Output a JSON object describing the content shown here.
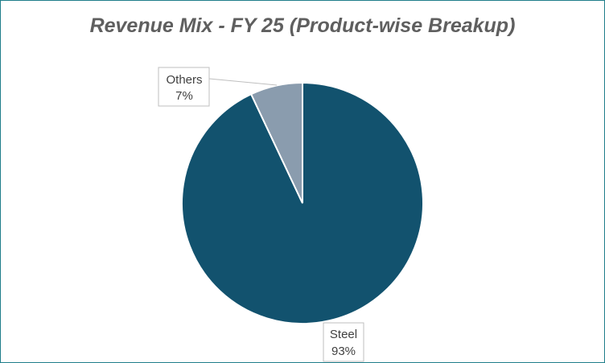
{
  "chart_data": {
    "type": "pie",
    "title": "Revenue Mix - FY 25 (Product-wise Breakup)",
    "categories": [
      "Steel",
      "Others"
    ],
    "values": [
      93,
      7
    ],
    "data_labels": [
      {
        "name": "Steel",
        "pct": "93%"
      },
      {
        "name": "Others",
        "pct": "7%"
      }
    ],
    "colors": [
      "#12526e",
      "#8a9cae"
    ],
    "legend": "none"
  }
}
